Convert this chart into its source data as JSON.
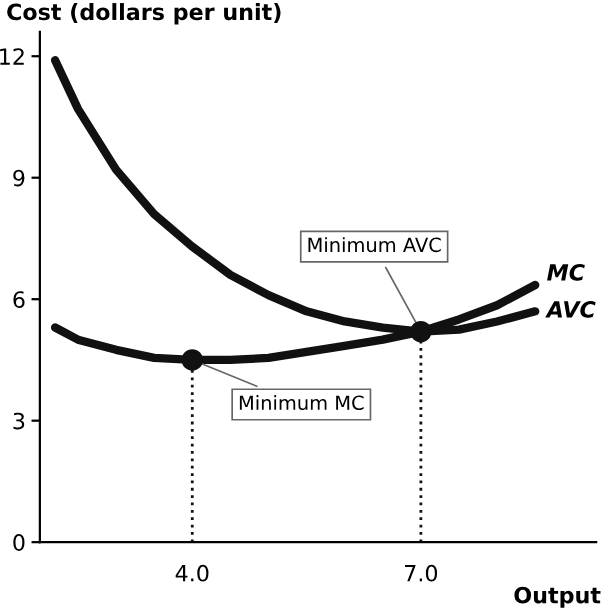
{
  "chart_data": {
    "type": "line",
    "xlabel": "Output",
    "ylabel": "Cost (dollars per unit)",
    "xlim": [
      2.0,
      9.3
    ],
    "ylim": [
      0,
      12.6
    ],
    "xticks": [
      {
        "value": 4,
        "label": "4.0"
      },
      {
        "value": 7,
        "label": "7.0"
      }
    ],
    "yticks": [
      {
        "value": 0,
        "label": "0"
      },
      3,
      6,
      9,
      12
    ],
    "grid": false,
    "series": [
      {
        "name": "MC",
        "color": "#111111",
        "x": [
          2.2,
          2.5,
          3.0,
          3.5,
          4.0,
          4.5,
          5.0,
          5.5,
          6.0,
          6.5,
          7.0,
          7.5,
          8.0,
          8.5
        ],
        "values": [
          5.3,
          5.0,
          4.75,
          4.55,
          4.5,
          4.5,
          4.55,
          4.7,
          4.85,
          5.0,
          5.2,
          5.5,
          5.85,
          6.35
        ]
      },
      {
        "name": "AVC",
        "color": "#111111",
        "x": [
          2.2,
          2.5,
          3.0,
          3.5,
          4.0,
          4.5,
          5.0,
          5.5,
          6.0,
          6.5,
          7.0,
          7.5,
          8.0,
          8.5
        ],
        "values": [
          11.9,
          10.7,
          9.2,
          8.1,
          7.3,
          6.6,
          6.1,
          5.7,
          5.45,
          5.3,
          5.2,
          5.25,
          5.45,
          5.7
        ]
      },
      {
        "type": "scatter",
        "color": "#111111",
        "x": [
          4.0,
          7.0
        ],
        "values": [
          4.5,
          5.2
        ],
        "marker": "circle"
      },
      {
        "type": "line",
        "color": "#111111",
        "x": [
          4.0,
          4.0
        ],
        "values": [
          0,
          4.5
        ],
        "line_style": "dotted"
      },
      {
        "type": "line",
        "color": "#111111",
        "x": [
          7.0,
          7.0
        ],
        "values": [
          0,
          5.2
        ],
        "line_style": "dotted"
      }
    ],
    "annotations": [
      {
        "text": "Minimum AVC",
        "x": 7.0,
        "y": 5.2
      },
      {
        "text": "Minimum MC",
        "x": 4.0,
        "y": 4.5
      }
    ]
  }
}
